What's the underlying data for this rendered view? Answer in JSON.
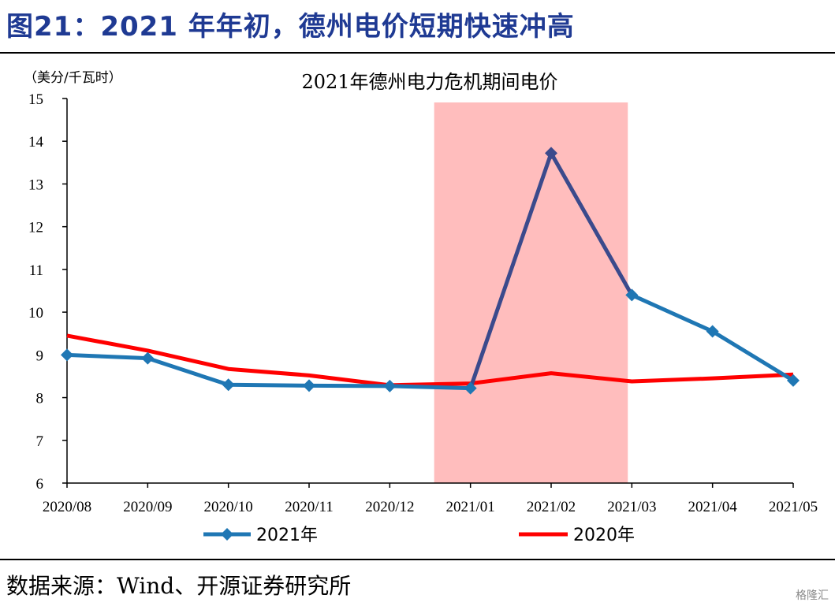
{
  "figure_title": "图21：2021 年年初，德州电价短期快速冲高",
  "source_text": "数据来源：Wind、开源证券研究所",
  "watermark": "格隆汇",
  "colors": {
    "title": "#1F3A93",
    "series_2021": "#1F77B4",
    "series_2021_crisis": "#3B4A8C",
    "series_2020": "#FF0000",
    "highlight": "#FFBDBD"
  },
  "chart_data": {
    "type": "line",
    "title": "2021年德州电力危机期间电价",
    "ylabel": "（美分/千瓦时）",
    "xlabel": "",
    "ylim": [
      6,
      15
    ],
    "yticks": [
      6,
      7,
      8,
      9,
      10,
      11,
      12,
      13,
      14,
      15
    ],
    "categories": [
      "2020/08",
      "2020/09",
      "2020/10",
      "2020/11",
      "2020/12",
      "2021/01",
      "2021/02",
      "2021/03",
      "2021/04",
      "2021/05"
    ],
    "highlight_range": [
      4.55,
      6.95
    ],
    "grid": false,
    "legend_position": "bottom",
    "series": [
      {
        "name": "2021年",
        "values": [
          9.0,
          8.92,
          8.3,
          8.28,
          8.27,
          8.22,
          13.72,
          10.4,
          9.55,
          8.4
        ],
        "marker": "diamond"
      },
      {
        "name": "2020年",
        "values": [
          9.45,
          9.1,
          8.67,
          8.52,
          8.29,
          8.33,
          8.57,
          8.38,
          8.45,
          8.54
        ],
        "marker": "none"
      }
    ]
  }
}
